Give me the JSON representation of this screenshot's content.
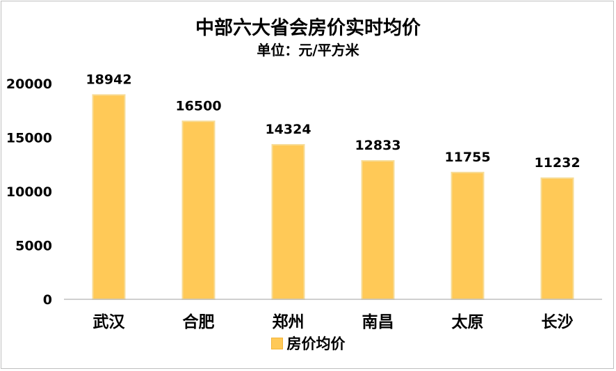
{
  "chart_data": {
    "type": "bar",
    "title": "中部六大省会房价实时均价",
    "subtitle": "单位：元/平方米",
    "categories": [
      "武汉",
      "合肥",
      "郑州",
      "南昌",
      "太原",
      "长沙"
    ],
    "series": [
      {
        "name": "房价均价",
        "values": [
          18942,
          16500,
          14324,
          12833,
          11755,
          11232
        ]
      }
    ],
    "ylim": [
      0,
      20000
    ],
    "yticks": [
      0,
      5000,
      10000,
      15000,
      20000
    ],
    "grid": false,
    "legend": "bottom",
    "bar_color": "#ffc957",
    "bar_edge_color": "#f7dc97"
  }
}
